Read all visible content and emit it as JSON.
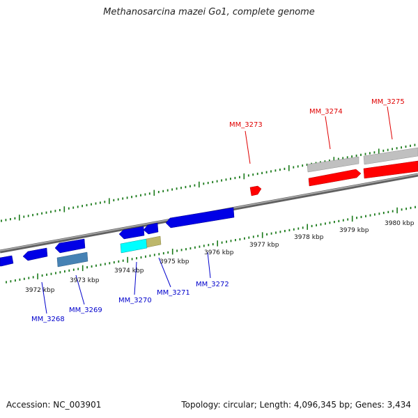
{
  "title": "Methanosarcina mazei Go1, complete genome",
  "footer": {
    "accession": "Accession: NC_003901",
    "summary": "Topology: circular; Length: 4,096,345 bp; Genes: 3,434"
  },
  "colors": {
    "forward_gene": "#ff0000",
    "reverse_gene": "#0000e6",
    "pseudo_gene": "#c0c0c0",
    "cyan_gene": "#00ffff",
    "olive_gene": "#bdb76b",
    "steel_gene": "#4682b4",
    "tick": "#1a7a1a",
    "backbone": "#808080"
  },
  "kbp_labels": [
    "3972 kbp",
    "3973 kbp",
    "3974 kbp",
    "3975 kbp",
    "3976 kbp",
    "3977 kbp",
    "3978 kbp",
    "3979 kbp",
    "3980 kbp"
  ],
  "gene_labels": {
    "forward": [
      "MM_3273",
      "MM_3274",
      "MM_3275"
    ],
    "reverse": [
      "MM_3268",
      "MM_3269",
      "MM_3270",
      "MM_3271",
      "MM_3272"
    ]
  }
}
